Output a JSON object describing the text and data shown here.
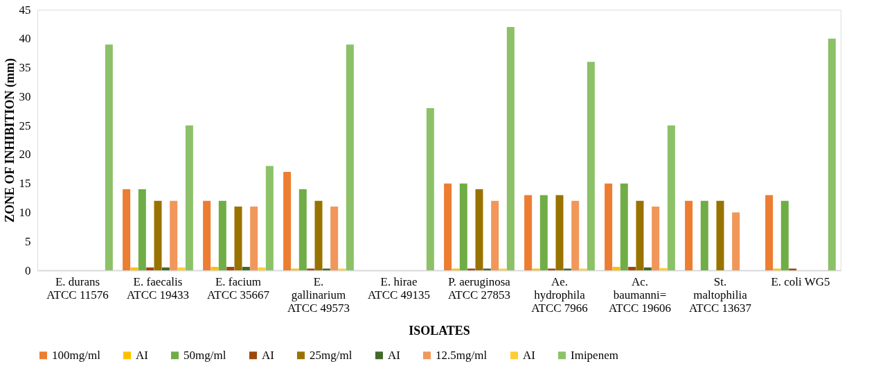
{
  "chart_data": {
    "type": "bar",
    "xlabel": "ISOLATES",
    "ylabel": "ZONE OF INHIBITION (mm)",
    "categories": [
      "E. durans\nATCC 11576",
      "E. faecalis\nATCC 19433",
      "E. facium\nATCC 35667",
      "E.\ngallinarium\nATCC 49573",
      "E. hirae\nATCC 49135",
      "P. aeruginosa\nATCC 27853",
      "Ae.\nhydrophila\nATCC 7966",
      "Ac.\nbaumanni=\nATCC 19606",
      "St.\nmaltophilia\nATCC 13637",
      "E. coli WG5"
    ],
    "series": [
      {
        "name": "100mg/ml",
        "color": "#ed7d31",
        "values": [
          0,
          14,
          12,
          17,
          0,
          15,
          13,
          15,
          12,
          13
        ]
      },
      {
        "name": "AI",
        "color": "#ffc000",
        "values": [
          0,
          0.5,
          0.6,
          0.3,
          0,
          0.3,
          0.3,
          0.6,
          0,
          0.3
        ]
      },
      {
        "name": "50mg/ml",
        "color": "#70ad47",
        "values": [
          0,
          14,
          12,
          14,
          0,
          15,
          13,
          15,
          12,
          12
        ]
      },
      {
        "name": "AI",
        "color": "#9e480e",
        "values": [
          0,
          0.5,
          0.6,
          0.3,
          0,
          0.3,
          0.3,
          0.6,
          0,
          0.3
        ]
      },
      {
        "name": "25mg/ml",
        "color": "#997300",
        "values": [
          0,
          12,
          11,
          12,
          0,
          14,
          13,
          12,
          12,
          0
        ]
      },
      {
        "name": "AI",
        "color": "#43682b",
        "values": [
          0,
          0.5,
          0.6,
          0.3,
          0,
          0.3,
          0.3,
          0.5,
          0,
          0
        ]
      },
      {
        "name": "12.5mg/ml",
        "color": "#f1975a",
        "values": [
          0,
          12,
          11,
          11,
          0,
          12,
          12,
          11,
          10,
          0
        ]
      },
      {
        "name": "AI",
        "color": "#ffcd33",
        "values": [
          0,
          0.5,
          0.5,
          0.3,
          0,
          0.3,
          0.3,
          0.4,
          0,
          0
        ]
      },
      {
        "name": "Imipenem",
        "color": "#8cc168",
        "values": [
          39,
          25,
          18,
          39,
          28,
          42,
          36,
          25,
          0,
          40
        ]
      }
    ],
    "ylim": [
      0,
      45
    ],
    "yticks": [
      0,
      5,
      10,
      15,
      20,
      25,
      30,
      35,
      40,
      45
    ],
    "grid": false,
    "legend": "bottom"
  }
}
